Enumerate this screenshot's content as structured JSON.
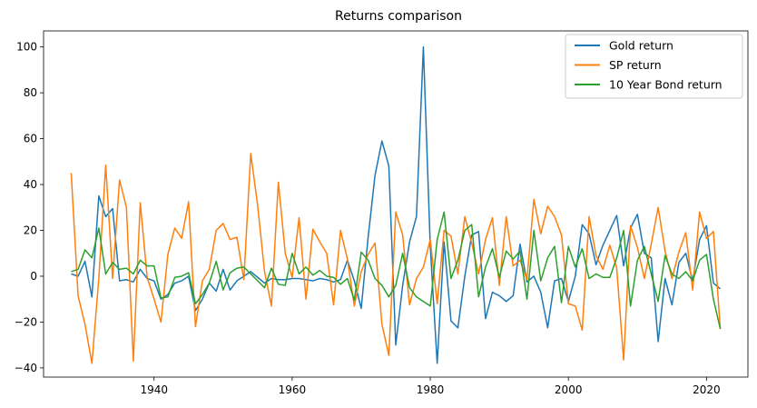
{
  "chart_data": {
    "type": "line",
    "title": "Returns comparison",
    "xlabel": "",
    "ylabel": "",
    "xlim": [
      1924,
      2026
    ],
    "ylim": [
      -44,
      107
    ],
    "xticks": [
      1940,
      1960,
      1980,
      2000,
      2020
    ],
    "yticks": [
      -40,
      -20,
      0,
      20,
      40,
      60,
      80,
      100
    ],
    "grid": false,
    "legend_position": "upper-right",
    "x": [
      1928,
      1929,
      1930,
      1931,
      1932,
      1933,
      1934,
      1935,
      1936,
      1937,
      1938,
      1939,
      1940,
      1941,
      1942,
      1943,
      1944,
      1945,
      1946,
      1947,
      1948,
      1949,
      1950,
      1951,
      1952,
      1953,
      1954,
      1955,
      1956,
      1957,
      1958,
      1959,
      1960,
      1961,
      1962,
      1963,
      1964,
      1965,
      1966,
      1967,
      1968,
      1969,
      1970,
      1971,
      1972,
      1973,
      1974,
      1975,
      1976,
      1977,
      1978,
      1979,
      1980,
      1981,
      1982,
      1983,
      1984,
      1985,
      1986,
      1987,
      1988,
      1989,
      1990,
      1991,
      1992,
      1993,
      1994,
      1995,
      1996,
      1997,
      1998,
      1999,
      2000,
      2001,
      2002,
      2003,
      2004,
      2005,
      2006,
      2007,
      2008,
      2009,
      2010,
      2011,
      2012,
      2013,
      2014,
      2015,
      2016,
      2017,
      2018,
      2019,
      2020,
      2021,
      2022
    ],
    "series": [
      {
        "name": "Gold return",
        "color": "#1f77b4",
        "values": [
          1,
          0,
          6.5,
          -9,
          35,
          26,
          29.5,
          -2,
          -1.5,
          -2.5,
          3,
          -1,
          -2,
          -10,
          -8,
          -3,
          -2,
          0,
          -15,
          -10,
          -3,
          -6.5,
          3,
          -6,
          -2,
          0,
          2,
          -0.5,
          -3,
          -1,
          -1.5,
          -1.5,
          -1,
          -1,
          -1.5,
          -2,
          -1,
          -1.5,
          -2.5,
          -1.5,
          7,
          -2,
          -14,
          17,
          44,
          59,
          48,
          -30,
          -4,
          15,
          26,
          100,
          13,
          -38,
          15,
          -19.5,
          -22.5,
          0,
          18,
          19.5,
          -18.5,
          -7,
          -8.5,
          -11,
          -8.5,
          14,
          -2.5,
          0,
          -7,
          -22.5,
          -2,
          -1,
          -11,
          0,
          22.5,
          18.5,
          5,
          13.5,
          20,
          26.5,
          4.5,
          21,
          27,
          10,
          8,
          -28.5,
          -1,
          -12.5,
          6,
          10,
          -2,
          16,
          22,
          -3,
          -5.5
        ]
      },
      {
        "name": "SP return",
        "color": "#ff7f0e",
        "values": [
          45,
          -8.5,
          -21,
          -38,
          -1,
          48.5,
          -1,
          42,
          30,
          -37,
          32,
          -0.5,
          -10,
          -20,
          9.5,
          21,
          16.5,
          32.5,
          -22,
          -2,
          3,
          20,
          23,
          16,
          17,
          -1.5,
          53.5,
          31,
          2,
          -13,
          41,
          10,
          -0.5,
          25.5,
          -10,
          20.5,
          15,
          10,
          -12.5,
          20,
          7.5,
          -13,
          2,
          9.5,
          14.5,
          -21,
          -34.5,
          28,
          18,
          -12.5,
          -1,
          4,
          16,
          -12,
          20,
          17.5,
          1,
          26,
          14.5,
          1,
          16,
          25.5,
          -4,
          26,
          4.5,
          7,
          -1.5,
          33.5,
          18.5,
          30.5,
          26,
          18,
          -12,
          -13,
          -23.5,
          26,
          9,
          3,
          13.5,
          3.5,
          -36.5,
          22,
          12.5,
          -1,
          14,
          30,
          11,
          -1,
          10.5,
          19,
          -6,
          28,
          16.5,
          19.5,
          -23
        ]
      },
      {
        "name": "10 Year Bond return",
        "color": "#2ca02c",
        "values": [
          2,
          3,
          11.5,
          8,
          21,
          1,
          6,
          3,
          3.5,
          1,
          7,
          4.5,
          4.5,
          -9.5,
          -9,
          -0.5,
          0,
          1.5,
          -12,
          -8,
          -3,
          6.5,
          -6,
          1.5,
          3.5,
          4,
          1,
          -2,
          -5,
          3.5,
          -3.5,
          -4,
          10,
          1,
          4,
          0.5,
          2.5,
          0,
          -0.5,
          -3.5,
          -1,
          -10.5,
          10.5,
          7,
          -1,
          -4,
          -9,
          -4,
          10,
          -5,
          -9,
          -11,
          -13,
          16,
          28,
          -1,
          7,
          20,
          22.5,
          -9,
          4,
          12,
          -0.5,
          11,
          7.5,
          11,
          -10,
          20,
          -2,
          8,
          13,
          -11.5,
          13,
          4,
          12,
          -1,
          1,
          -0.5,
          -0.5,
          8,
          20,
          -13,
          7,
          13,
          1,
          -11,
          9,
          1,
          -1,
          2,
          -2,
          7,
          9.5,
          -10,
          -23
        ]
      }
    ]
  }
}
